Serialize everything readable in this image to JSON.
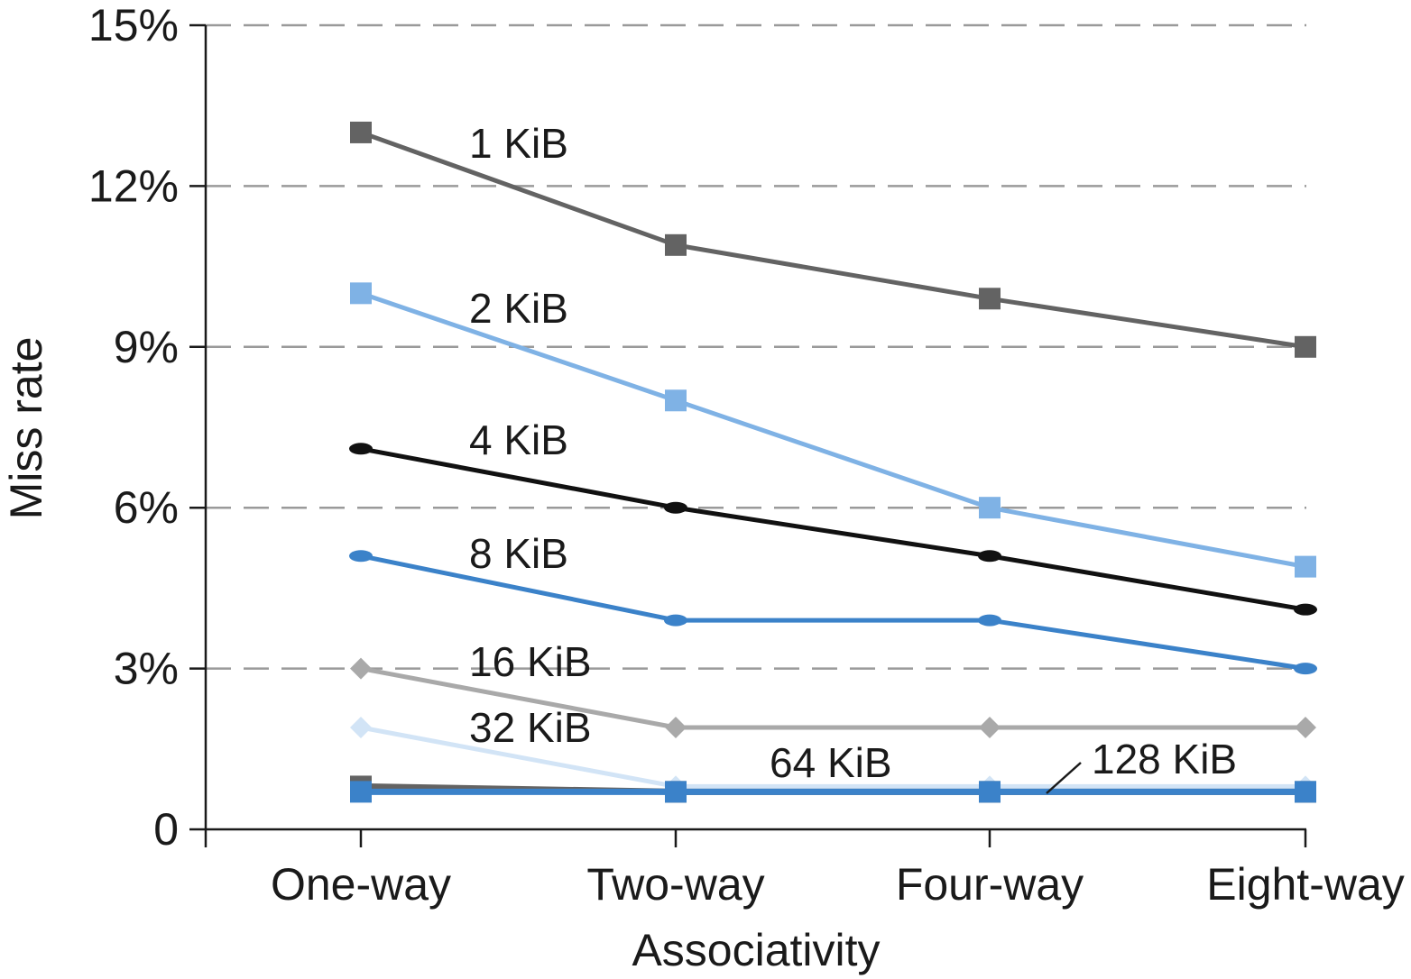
{
  "chart_data": {
    "type": "line",
    "title": "",
    "xlabel": "Associativity",
    "ylabel": "Miss rate",
    "categories": [
      "One-way",
      "Two-way",
      "Four-way",
      "Eight-way"
    ],
    "ylim": [
      0,
      15
    ],
    "yticks": [
      0,
      3,
      6,
      9,
      12,
      15
    ],
    "ytick_labels": [
      "0",
      "3%",
      "6%",
      "9%",
      "12%",
      "15%"
    ],
    "grid": true,
    "legend": "inline labels",
    "series": [
      {
        "name": "1 KiB",
        "values": [
          13.0,
          10.9,
          9.9,
          9.0
        ],
        "color": "#636363",
        "marker": "square"
      },
      {
        "name": "2 KiB",
        "values": [
          10.0,
          8.0,
          6.0,
          4.9
        ],
        "color": "#7fb2e5",
        "marker": "square"
      },
      {
        "name": "4 KiB",
        "values": [
          7.1,
          6.0,
          5.1,
          4.1
        ],
        "color": "#111111",
        "marker": "circle"
      },
      {
        "name": "8 KiB",
        "values": [
          5.1,
          3.9,
          3.9,
          3.0
        ],
        "color": "#3b82c9",
        "marker": "circle"
      },
      {
        "name": "16 KiB",
        "values": [
          3.0,
          1.9,
          1.9,
          1.9
        ],
        "color": "#a9a9a9",
        "marker": "diamond"
      },
      {
        "name": "32 KiB",
        "values": [
          1.9,
          0.8,
          0.8,
          0.8
        ],
        "color": "#d2e4f6",
        "marker": "diamond"
      },
      {
        "name": "64 KiB",
        "values": [
          0.8,
          0.7,
          0.7,
          0.7
        ],
        "color": "#636363",
        "marker": "square"
      },
      {
        "name": "128 KiB",
        "values": [
          0.7,
          0.7,
          0.7,
          0.7
        ],
        "color": "#3b82c9",
        "marker": "square"
      }
    ]
  }
}
